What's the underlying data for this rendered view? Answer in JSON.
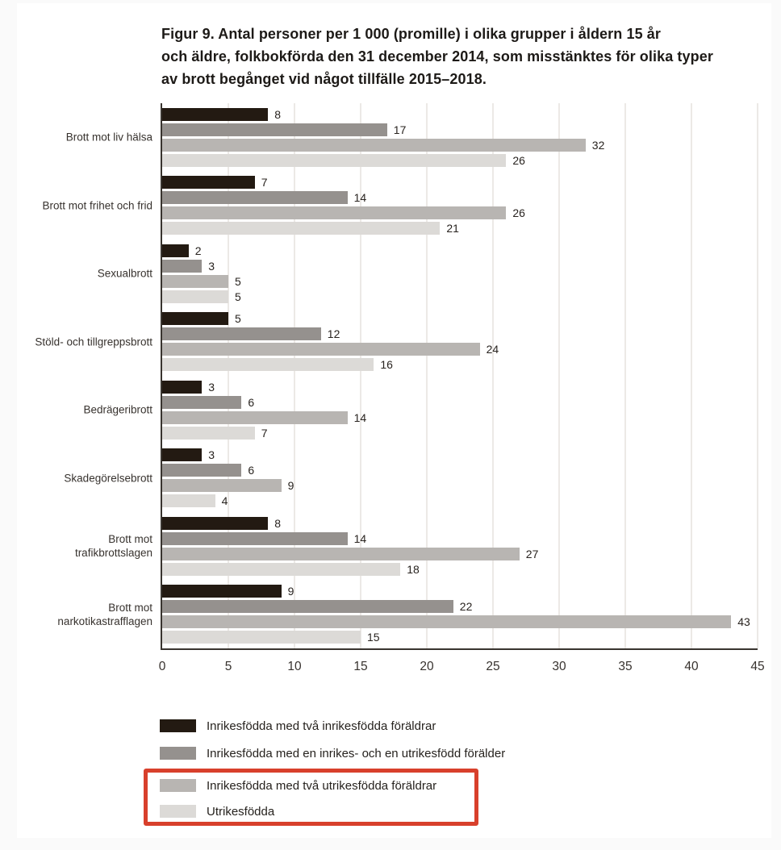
{
  "figure": {
    "title_lines": [
      "Figur 9. Antal personer per 1 000 (promille) i olika grupper i åldern 15 år",
      "och äldre, folkbokförda den 31 december 2014, som misstänktes för olika typer",
      "av brott begånget vid något tillfälle 2015–2018."
    ]
  },
  "chart_data": {
    "type": "bar",
    "orientation": "horizontal",
    "title": "Figur 9. Antal personer per 1 000 (promille) i olika grupper i åldern 15 år och äldre, folkbokförda den 31 december 2014, som misstänktes för olika typer av brott begånget vid något tillfälle 2015–2018.",
    "categories": [
      "Brott mot liv hälsa",
      "Brott mot frihet och frid",
      "Sexualbrott",
      "Stöld- och tillgreppsbrott",
      "Bedrägeribrott",
      "Skadegörelsebrott",
      "Brott mot trafikbrottslagen",
      "Brott mot narkotikastrafflagen"
    ],
    "category_label_lines": [
      [
        "Brott mot liv hälsa"
      ],
      [
        "Brott mot frihet och frid"
      ],
      [
        "Sexualbrott"
      ],
      [
        "Stöld- och tillgreppsbrott"
      ],
      [
        "Bedrägeribrott"
      ],
      [
        "Skadegörelsebrott"
      ],
      [
        "Brott mot",
        "trafikbrottslagen"
      ],
      [
        "Brott mot",
        "narkotikastrafflagen"
      ]
    ],
    "series": [
      {
        "name": "Inrikesfödda med två inrikesfödda föräldrar",
        "color": "#231a12",
        "values": [
          8,
          7,
          2,
          5,
          3,
          3,
          8,
          9
        ]
      },
      {
        "name": "Inrikesfödda med en inrikes- och en utrikesfödd förälder",
        "color": "#95918e",
        "values": [
          17,
          14,
          3,
          12,
          6,
          6,
          14,
          22
        ]
      },
      {
        "name": "Inrikesfödda med två utrikesfödda föräldrar",
        "color": "#b8b5b2",
        "values": [
          32,
          26,
          5,
          24,
          14,
          9,
          27,
          43
        ]
      },
      {
        "name": "Utrikesfödda",
        "color": "#dcdad7",
        "values": [
          26,
          21,
          5,
          16,
          7,
          4,
          18,
          15
        ]
      }
    ],
    "xlim": [
      0,
      45
    ],
    "xticks": [
      0,
      5,
      10,
      15,
      20,
      25,
      30,
      35,
      40,
      45
    ],
    "grid": true,
    "value_labels": true,
    "legend_position": "bottom-left"
  },
  "legend": {
    "highlight": {
      "item_indexes": [
        2,
        3
      ],
      "box_color": "#d8402c"
    }
  },
  "colors": {
    "axis": "#39342f",
    "gridline": "#ece9e6",
    "title_text": "#1d1a17",
    "label_text": "#37322e",
    "highlight_red": "#d8402c",
    "page_margin": "#fafafa",
    "card_background": "#ffffff"
  }
}
